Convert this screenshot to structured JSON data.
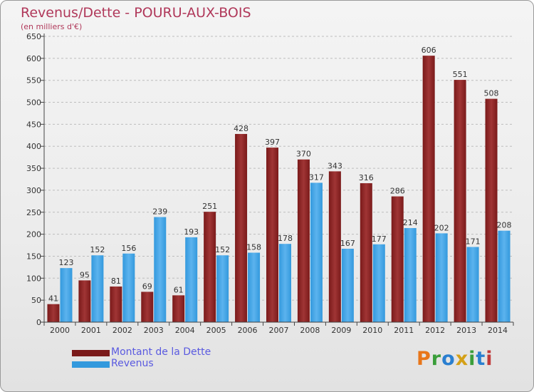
{
  "header": {
    "title": "Revenus/Dette - POURU-AUX-BOIS",
    "subtitle": "(en milliers d'€)"
  },
  "legend": {
    "items": [
      {
        "label": "Montant de la Dette",
        "color": "#7a1a1a"
      },
      {
        "label": "Revenus",
        "color": "#3399dd"
      }
    ]
  },
  "logo": {
    "letters": [
      "P",
      "r",
      "o",
      "x",
      "i",
      "t",
      "i"
    ],
    "colors": [
      "#e8761a",
      "#3a9e3a",
      "#2a7fd0",
      "#d4a017",
      "#3a9e3a",
      "#2a7fd0",
      "#c03a3a"
    ]
  },
  "colors": {
    "debt": "#7a1a1a",
    "debt_light": "#a03535",
    "revenue": "#3399dd",
    "revenue_light": "#5cb3ee",
    "axis": "#444444",
    "grid": "#bdbdbd"
  },
  "chart_data": {
    "type": "bar",
    "title": "Revenus/Dette - POURU-AUX-BOIS",
    "subtitle": "(en milliers d'€)",
    "xlabel": "",
    "ylabel": "",
    "ylim": [
      0,
      650
    ],
    "ytick_step": 50,
    "grid": true,
    "categories": [
      "2000",
      "2001",
      "2002",
      "2003",
      "2004",
      "2005",
      "2006",
      "2007",
      "2008",
      "2009",
      "2010",
      "2011",
      "2012",
      "2013",
      "2014"
    ],
    "series": [
      {
        "name": "Montant de la Dette",
        "values": [
          41,
          95,
          81,
          69,
          61,
          251,
          428,
          397,
          370,
          343,
          316,
          286,
          606,
          551,
          508
        ]
      },
      {
        "name": "Revenus",
        "values": [
          123,
          152,
          156,
          239,
          193,
          152,
          158,
          178,
          317,
          167,
          177,
          214,
          202,
          171,
          208
        ]
      }
    ]
  }
}
